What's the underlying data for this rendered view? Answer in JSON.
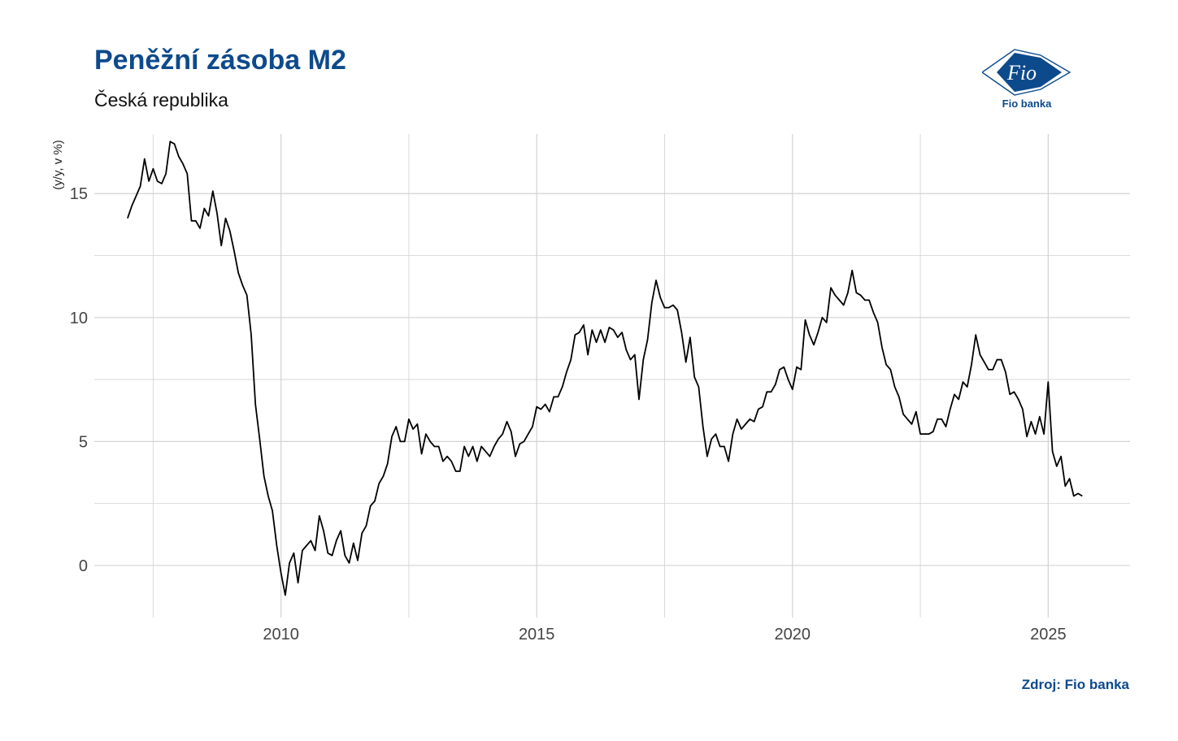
{
  "header": {
    "title": "Peněžní zásoba M2",
    "subtitle": "Česká republika"
  },
  "logo": {
    "mark_text": "Fio",
    "caption": "Fio banka",
    "color": "#0d4a8c"
  },
  "footer": {
    "source": "Zdroj: Fio banka"
  },
  "chart_data": {
    "type": "line",
    "title": "Peněžní zásoba M2",
    "subtitle": "Česká republika",
    "xlabel": "",
    "ylabel": "(y/y, v %)",
    "xlim": [
      2006.35,
      2026.6
    ],
    "ylim": [
      -2.1,
      17.4
    ],
    "x_ticks": [
      2010,
      2015,
      2020,
      2025
    ],
    "y_ticks": [
      0,
      5,
      10,
      15
    ],
    "grid": true,
    "line_color": "#000000",
    "series": [
      {
        "x": [
          2007.0,
          2007.083,
          2007.167,
          2007.25,
          2007.333,
          2007.417,
          2007.5,
          2007.583,
          2007.667,
          2007.75,
          2007.833,
          2007.917,
          2008.0,
          2008.083,
          2008.167,
          2008.25,
          2008.333,
          2008.417,
          2008.5,
          2008.583,
          2008.667,
          2008.75,
          2008.833,
          2008.917,
          2009.0,
          2009.083,
          2009.167,
          2009.25,
          2009.333,
          2009.417,
          2009.5,
          2009.583,
          2009.667,
          2009.75,
          2009.833,
          2009.917,
          2010.0,
          2010.083,
          2010.167,
          2010.25,
          2010.333,
          2010.417,
          2010.5,
          2010.583,
          2010.667,
          2010.75,
          2010.833,
          2010.917,
          2011.0,
          2011.083,
          2011.167,
          2011.25,
          2011.333,
          2011.417,
          2011.5,
          2011.583,
          2011.667,
          2011.75,
          2011.833,
          2011.917,
          2012.0,
          2012.083,
          2012.167,
          2012.25,
          2012.333,
          2012.417,
          2012.5,
          2012.583,
          2012.667,
          2012.75,
          2012.833,
          2012.917,
          2013.0,
          2013.083,
          2013.167,
          2013.25,
          2013.333,
          2013.417,
          2013.5,
          2013.583,
          2013.667,
          2013.75,
          2013.833,
          2013.917,
          2014.0,
          2014.083,
          2014.167,
          2014.25,
          2014.333,
          2014.417,
          2014.5,
          2014.583,
          2014.667,
          2014.75,
          2014.833,
          2014.917,
          2015.0,
          2015.083,
          2015.167,
          2015.25,
          2015.333,
          2015.417,
          2015.5,
          2015.583,
          2015.667,
          2015.75,
          2015.833,
          2015.917,
          2016.0,
          2016.083,
          2016.167,
          2016.25,
          2016.333,
          2016.417,
          2016.5,
          2016.583,
          2016.667,
          2016.75,
          2016.833,
          2016.917,
          2017.0,
          2017.083,
          2017.167,
          2017.25,
          2017.333,
          2017.417,
          2017.5,
          2017.583,
          2017.667,
          2017.75,
          2017.833,
          2017.917,
          2018.0,
          2018.083,
          2018.167,
          2018.25,
          2018.333,
          2018.417,
          2018.5,
          2018.583,
          2018.667,
          2018.75,
          2018.833,
          2018.917,
          2019.0,
          2019.083,
          2019.167,
          2019.25,
          2019.333,
          2019.417,
          2019.5,
          2019.583,
          2019.667,
          2019.75,
          2019.833,
          2019.917,
          2020.0,
          2020.083,
          2020.167,
          2020.25,
          2020.333,
          2020.417,
          2020.5,
          2020.583,
          2020.667,
          2020.75,
          2020.833,
          2020.917,
          2021.0,
          2021.083,
          2021.167,
          2021.25,
          2021.333,
          2021.417,
          2021.5,
          2021.583,
          2021.667,
          2021.75,
          2021.833,
          2021.917,
          2022.0,
          2022.083,
          2022.167,
          2022.25,
          2022.333,
          2022.417,
          2022.5,
          2022.583,
          2022.667,
          2022.75,
          2022.833,
          2022.917,
          2023.0,
          2023.083,
          2023.167,
          2023.25,
          2023.333,
          2023.417,
          2023.5,
          2023.583,
          2023.667,
          2023.75,
          2023.833,
          2023.917,
          2024.0,
          2024.083,
          2024.167,
          2024.25,
          2024.333,
          2024.417,
          2024.5,
          2024.583,
          2024.667,
          2024.75,
          2024.833,
          2024.917,
          2025.0,
          2025.083,
          2025.167,
          2025.25,
          2025.333,
          2025.417,
          2025.5,
          2025.583,
          2025.667
        ],
        "values": [
          14.0,
          14.5,
          14.9,
          15.3,
          16.4,
          15.5,
          16.0,
          15.5,
          15.4,
          15.8,
          17.1,
          17.0,
          16.5,
          16.2,
          15.8,
          13.9,
          13.9,
          13.6,
          14.4,
          14.1,
          15.1,
          14.2,
          12.9,
          14.0,
          13.5,
          12.7,
          11.8,
          11.3,
          10.9,
          9.3,
          6.5,
          5.1,
          3.6,
          2.8,
          2.2,
          0.8,
          -0.3,
          -1.2,
          0.1,
          0.5,
          -0.7,
          0.6,
          0.8,
          1.0,
          0.6,
          2.0,
          1.4,
          0.5,
          0.4,
          1.0,
          1.4,
          0.4,
          0.1,
          0.9,
          0.2,
          1.3,
          1.6,
          2.4,
          2.6,
          3.3,
          3.6,
          4.1,
          5.2,
          5.6,
          5.0,
          5.0,
          5.9,
          5.5,
          5.7,
          4.5,
          5.3,
          5.0,
          4.8,
          4.8,
          4.2,
          4.4,
          4.2,
          3.8,
          3.8,
          4.8,
          4.4,
          4.8,
          4.2,
          4.8,
          4.6,
          4.4,
          4.8,
          5.1,
          5.3,
          5.8,
          5.4,
          4.4,
          4.9,
          5.0,
          5.3,
          5.6,
          6.4,
          6.3,
          6.5,
          6.2,
          6.8,
          6.8,
          7.2,
          7.8,
          8.3,
          9.3,
          9.4,
          9.7,
          8.5,
          9.5,
          9.0,
          9.5,
          9.0,
          9.6,
          9.5,
          9.2,
          9.4,
          8.7,
          8.3,
          8.5,
          6.7,
          8.3,
          9.1,
          10.6,
          11.5,
          10.8,
          10.4,
          10.4,
          10.5,
          10.3,
          9.4,
          8.2,
          9.2,
          7.6,
          7.2,
          5.6,
          4.4,
          5.1,
          5.3,
          4.8,
          4.8,
          4.2,
          5.3,
          5.9,
          5.5,
          5.7,
          5.9,
          5.8,
          6.3,
          6.4,
          7.0,
          7.0,
          7.3,
          7.9,
          8.0,
          7.5,
          7.1,
          8.0,
          7.9,
          9.9,
          9.3,
          8.9,
          9.4,
          10.0,
          9.8,
          11.2,
          10.9,
          10.7,
          10.5,
          11.0,
          11.9,
          11.0,
          10.9,
          10.7,
          10.7,
          10.2,
          9.8,
          8.8,
          8.1,
          7.9,
          7.2,
          6.8,
          6.1,
          5.9,
          5.7,
          6.2,
          5.3,
          5.3,
          5.3,
          5.4,
          5.9,
          5.9,
          5.6,
          6.3,
          6.9,
          6.7,
          7.4,
          7.2,
          8.1,
          9.3,
          8.5,
          8.2,
          7.9,
          7.9,
          8.3,
          8.3,
          7.8,
          6.9,
          7.0,
          6.7,
          6.3,
          5.2,
          5.8,
          5.3,
          6.0,
          5.3,
          7.4,
          4.6,
          4.0,
          4.4,
          3.2,
          3.5,
          2.8,
          2.9,
          2.8
        ]
      }
    ]
  }
}
